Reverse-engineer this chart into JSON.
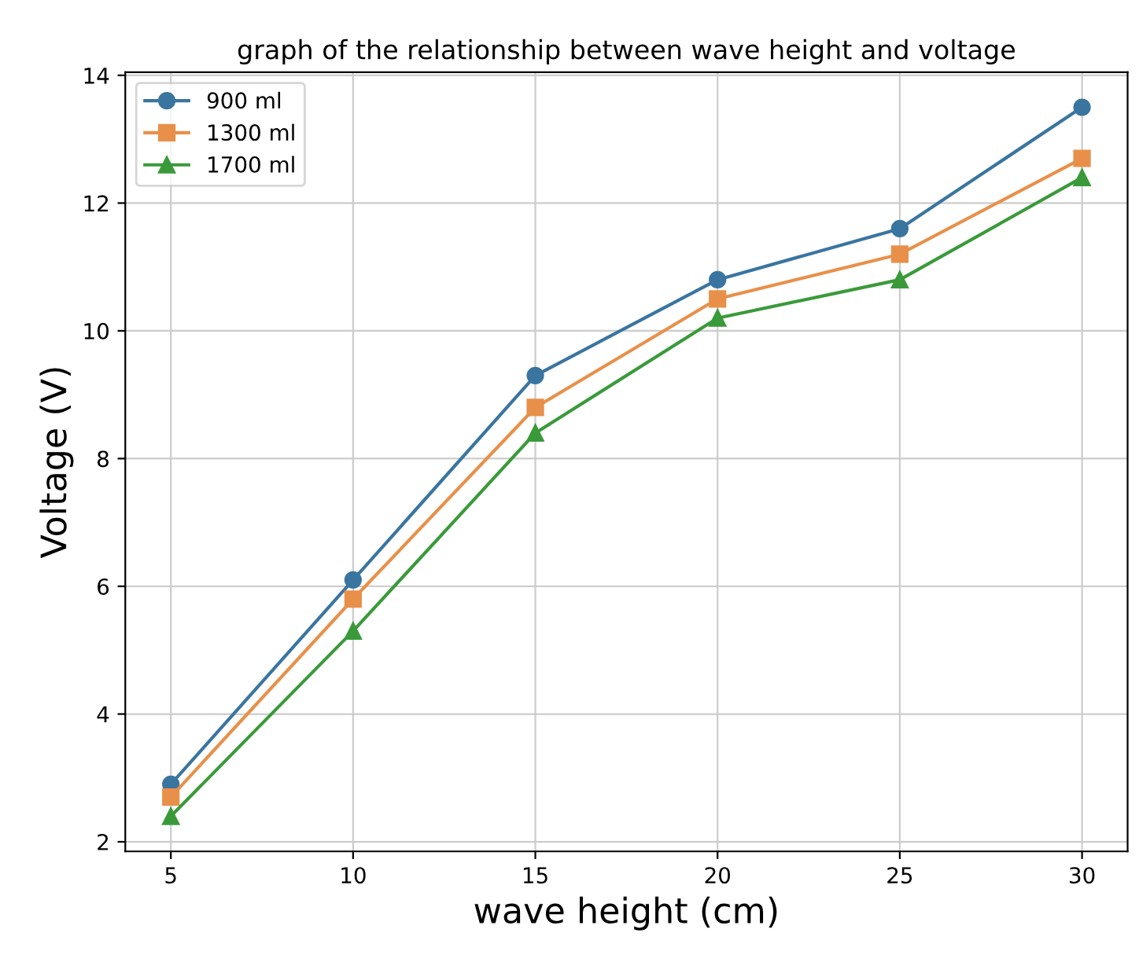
{
  "chart_data": {
    "type": "line",
    "title": "graph of the relationship between wave height and voltage",
    "xlabel": "wave height (cm)",
    "ylabel": "Voltage (V)",
    "x": [
      5,
      10,
      15,
      20,
      25,
      30
    ],
    "series": [
      {
        "name": "900 ml",
        "color": "#3a75a0",
        "marker": "circle",
        "values": [
          2.9,
          6.1,
          9.3,
          10.8,
          11.6,
          13.5
        ]
      },
      {
        "name": "1300 ml",
        "color": "#e8904a",
        "marker": "square",
        "values": [
          2.7,
          5.8,
          8.8,
          10.5,
          11.2,
          12.7
        ]
      },
      {
        "name": "1700 ml",
        "color": "#3a9a3a",
        "marker": "triangle",
        "values": [
          2.4,
          5.3,
          8.4,
          10.2,
          10.8,
          12.4
        ]
      }
    ],
    "xlim": [
      3.75,
      31.25
    ],
    "ylim": [
      1.85,
      14.05
    ],
    "xticks": [
      5,
      10,
      15,
      20,
      25,
      30
    ],
    "yticks": [
      2,
      4,
      6,
      8,
      10,
      12,
      14
    ],
    "grid": true,
    "legend": "top left",
    "line_style": "solid"
  }
}
